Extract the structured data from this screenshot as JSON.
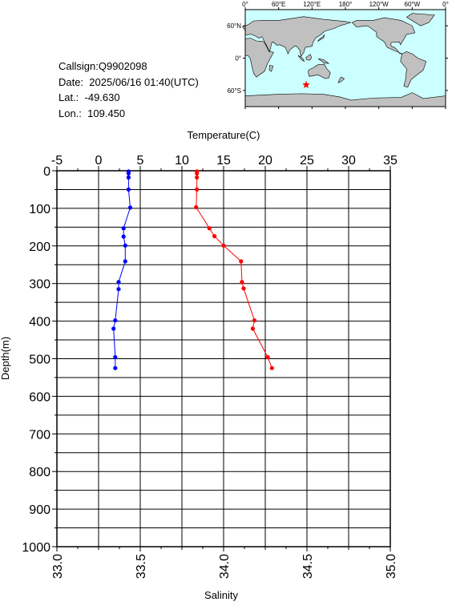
{
  "info": {
    "callsign": "Callsign:Q9902098",
    "date": "Date:  2025/06/16 01:40(UTC)",
    "lat": "Lat.:  -49.630",
    "lon": "Lon.:  109.450"
  },
  "map": {
    "lon_labels": [
      "0°",
      "60°E",
      "120°E",
      "180°",
      "120°W",
      "60°W",
      "0°"
    ],
    "lat_labels": [
      "60°N",
      "0°",
      "60°S"
    ],
    "station": {
      "lon": 109.45,
      "lat": -49.63
    },
    "colors": {
      "ocean": "#ccffff",
      "land": "#c0c0c0",
      "marker": "#ff0000"
    }
  },
  "chart_data": {
    "type": "line",
    "top_axis_label": "Temperature(C)",
    "bottom_axis_label": "Salinity",
    "ylabel": "Depth(m)",
    "y_reversed": true,
    "temperature_range": [
      -5,
      35
    ],
    "temperature_ticks": [
      "-5",
      "0",
      "5",
      "10",
      "15",
      "20",
      "25",
      "30",
      "35"
    ],
    "salinity_range": [
      33.0,
      35.0
    ],
    "salinity_ticks": [
      "33.0",
      "33.5",
      "34.0",
      "34.5",
      "35.0"
    ],
    "depth_range": [
      0,
      1000
    ],
    "depth_ticks": [
      "0",
      "100",
      "200",
      "300",
      "400",
      "500",
      "600",
      "700",
      "800",
      "900",
      "1000"
    ],
    "grid": true,
    "series": [
      {
        "axis": "temperature",
        "color": "#ff0000",
        "points": [
          [
            11.8,
            2
          ],
          [
            11.8,
            7
          ],
          [
            11.8,
            18
          ],
          [
            11.8,
            50
          ],
          [
            11.7,
            97
          ],
          [
            13.3,
            153
          ],
          [
            13.9,
            174
          ],
          [
            15.0,
            199
          ],
          [
            17.1,
            241
          ],
          [
            17.2,
            296
          ],
          [
            17.4,
            313
          ],
          [
            18.7,
            398
          ],
          [
            18.5,
            420
          ],
          [
            20.3,
            496
          ],
          [
            20.8,
            525
          ]
        ]
      },
      {
        "axis": "salinity",
        "color": "#0000ff",
        "points": [
          [
            33.43,
            2
          ],
          [
            33.43,
            7
          ],
          [
            33.43,
            18
          ],
          [
            33.43,
            50
          ],
          [
            33.44,
            98
          ],
          [
            33.4,
            153
          ],
          [
            33.4,
            175
          ],
          [
            33.41,
            199
          ],
          [
            33.41,
            241
          ],
          [
            33.37,
            296
          ],
          [
            33.37,
            315
          ],
          [
            33.35,
            398
          ],
          [
            33.34,
            420
          ],
          [
            33.35,
            496
          ],
          [
            33.35,
            525
          ]
        ]
      }
    ]
  }
}
